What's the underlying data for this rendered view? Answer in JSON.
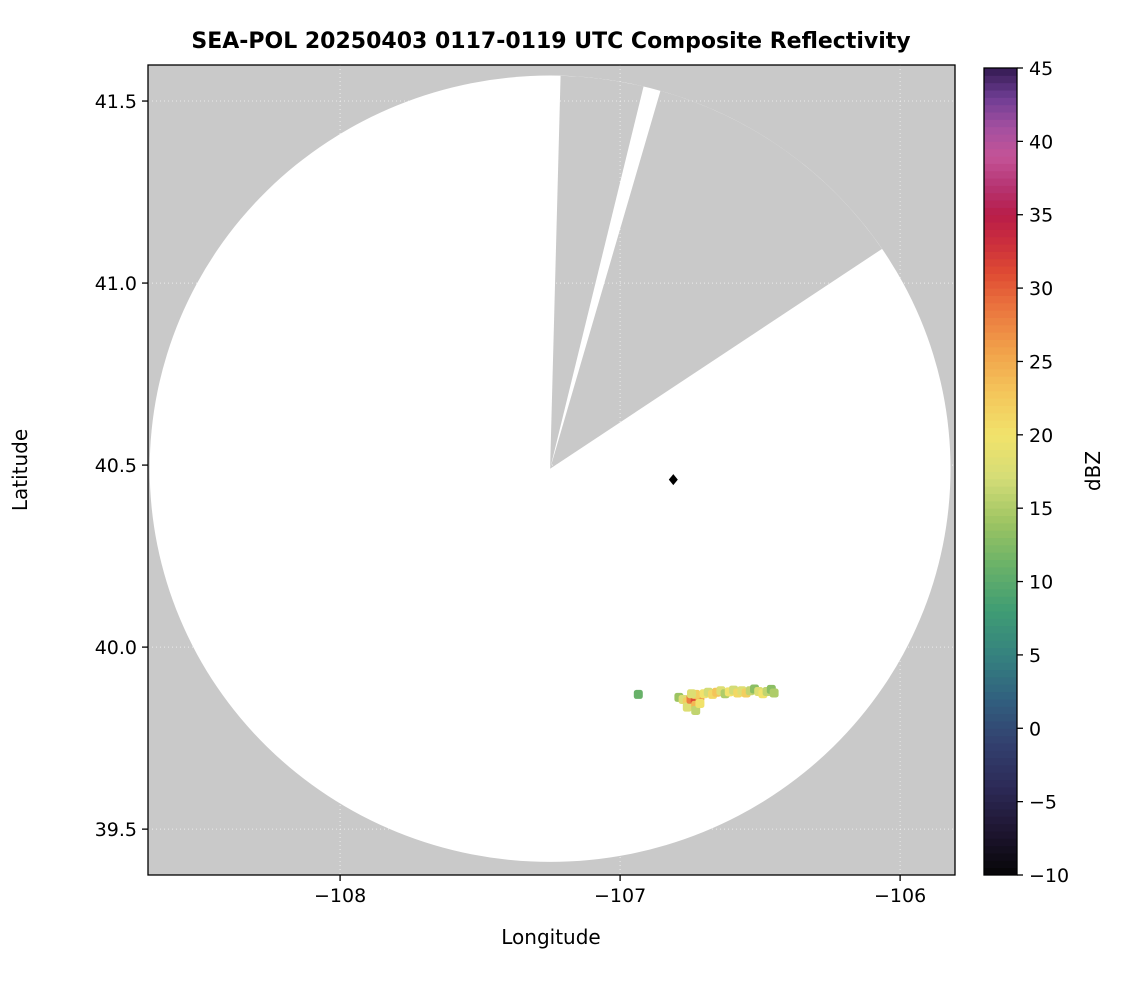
{
  "chart_data": {
    "type": "heatmap",
    "title": "SEA-POL 20250403 0117-0119 UTC Composite Reflectivity",
    "xlabel": "Longitude",
    "ylabel": "Latitude",
    "xlim": [
      -108.686,
      -105.804
    ],
    "ylim": [
      39.374,
      41.599
    ],
    "xticks": [
      -108,
      -107,
      -106
    ],
    "xtick_labels": [
      "−108",
      "−107",
      "−106"
    ],
    "yticks": [
      39.5,
      40.0,
      40.5,
      41.0,
      41.5
    ],
    "ytick_labels": [
      "39.5",
      "40.0",
      "40.5",
      "41.0",
      "41.5"
    ],
    "grid": {
      "style": "dotted",
      "visible": true
    },
    "radar": {
      "center_lon": -107.25,
      "center_lat": 40.49,
      "radius_lon_deg": 1.43,
      "radius_lat_deg": 1.08,
      "missing_sectors_deg": [
        [
          1.5,
          13.5
        ],
        [
          16,
          56
        ]
      ],
      "outside_color": "#c9c9c9",
      "inside_color": "#ffffff"
    },
    "marker": {
      "lon": -106.81,
      "lat": 40.46,
      "shape": "diamond",
      "color": "#000000"
    },
    "colorbar": {
      "label": "dBZ",
      "min": -10,
      "max": 45,
      "ticks": [
        45,
        40,
        35,
        30,
        25,
        20,
        15,
        10,
        5,
        0,
        -5,
        -10
      ],
      "tick_labels": [
        "45",
        "40",
        "35",
        "30",
        "25",
        "20",
        "15",
        "10",
        "5",
        "0",
        "−5",
        "−10"
      ],
      "stops": [
        [
          -10,
          "#060607"
        ],
        [
          -7,
          "#1e1530"
        ],
        [
          -4,
          "#2c2a57"
        ],
        [
          -1,
          "#33406f"
        ],
        [
          2,
          "#31607f"
        ],
        [
          5,
          "#35827f"
        ],
        [
          8,
          "#3f9c74"
        ],
        [
          11,
          "#68b169"
        ],
        [
          14,
          "#9cc462"
        ],
        [
          17,
          "#d3dc77"
        ],
        [
          20,
          "#f1e26b"
        ],
        [
          23,
          "#f4c45a"
        ],
        [
          26,
          "#f19e49"
        ],
        [
          29,
          "#e96f3d"
        ],
        [
          31,
          "#df4b33"
        ],
        [
          33,
          "#cc2f3c"
        ],
        [
          35,
          "#b81d49"
        ],
        [
          37,
          "#b63573"
        ],
        [
          39,
          "#c45497"
        ],
        [
          41,
          "#a34fa0"
        ],
        [
          43,
          "#6e3d93"
        ],
        [
          45,
          "#341b52"
        ]
      ]
    },
    "echo_cells": [
      [
        -106.935,
        39.87,
        11
      ],
      [
        -106.79,
        39.862,
        14
      ],
      [
        -106.775,
        39.856,
        18
      ],
      [
        -106.76,
        39.85,
        22
      ],
      [
        -106.745,
        39.845,
        26
      ],
      [
        -106.76,
        39.835,
        18
      ],
      [
        -106.745,
        39.858,
        28
      ],
      [
        -106.73,
        39.856,
        31
      ],
      [
        -106.73,
        39.84,
        24
      ],
      [
        -106.715,
        39.862,
        26
      ],
      [
        -106.73,
        39.87,
        22
      ],
      [
        -106.745,
        39.872,
        18
      ],
      [
        -106.73,
        39.826,
        16
      ],
      [
        -106.715,
        39.845,
        20
      ],
      [
        -106.7,
        39.872,
        20
      ],
      [
        -106.685,
        39.876,
        17
      ],
      [
        -106.67,
        39.87,
        21
      ],
      [
        -106.655,
        39.876,
        23
      ],
      [
        -106.64,
        39.88,
        18
      ],
      [
        -106.625,
        39.872,
        15
      ],
      [
        -106.61,
        39.877,
        20
      ],
      [
        -106.595,
        39.882,
        17
      ],
      [
        -106.58,
        39.874,
        21
      ],
      [
        -106.565,
        39.88,
        18
      ],
      [
        -106.55,
        39.874,
        22
      ],
      [
        -106.535,
        39.88,
        16
      ],
      [
        -106.52,
        39.885,
        13
      ],
      [
        -106.505,
        39.878,
        18
      ],
      [
        -106.49,
        39.872,
        20
      ],
      [
        -106.475,
        39.878,
        16
      ],
      [
        -106.46,
        39.884,
        13
      ],
      [
        -106.45,
        39.874,
        15
      ]
    ]
  }
}
